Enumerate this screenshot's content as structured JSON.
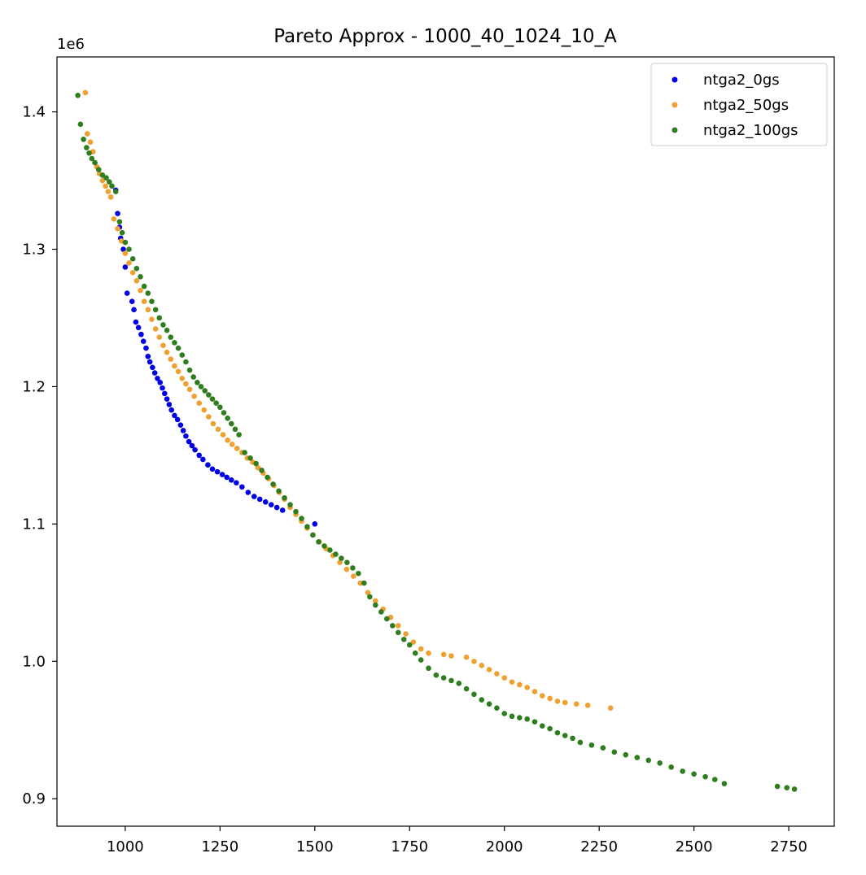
{
  "chart_data": {
    "type": "scatter",
    "title": "Pareto Approx - 1000_40_1024_10_A",
    "xlabel": "",
    "ylabel": "",
    "y_offset_label": "1e6",
    "xlim": [
      820,
      2870
    ],
    "ylim": [
      0.88,
      1.44
    ],
    "x_ticks": [
      1000,
      1250,
      1500,
      1750,
      2000,
      2250,
      2500,
      2750
    ],
    "x_tick_labels": [
      "1000",
      "1250",
      "1500",
      "1750",
      "2000",
      "2250",
      "2500",
      "2750"
    ],
    "y_ticks": [
      0.9,
      1.0,
      1.1,
      1.2,
      1.3,
      1.4
    ],
    "y_tick_labels": [
      "0.9",
      "1.0",
      "1.1",
      "1.2",
      "1.3",
      "1.4"
    ],
    "grid": false,
    "legend_position": "top-right",
    "series": [
      {
        "name": "ntga2_0gs",
        "color": "#0000e6",
        "points": [
          [
            975,
            1.343
          ],
          [
            980,
            1.326
          ],
          [
            985,
            1.316
          ],
          [
            988,
            1.308
          ],
          [
            995,
            1.3
          ],
          [
            1000,
            1.287
          ],
          [
            1005,
            1.268
          ],
          [
            1018,
            1.262
          ],
          [
            1023,
            1.256
          ],
          [
            1028,
            1.247
          ],
          [
            1035,
            1.243
          ],
          [
            1042,
            1.238
          ],
          [
            1048,
            1.233
          ],
          [
            1055,
            1.228
          ],
          [
            1060,
            1.222
          ],
          [
            1065,
            1.218
          ],
          [
            1072,
            1.214
          ],
          [
            1078,
            1.21
          ],
          [
            1085,
            1.206
          ],
          [
            1092,
            1.203
          ],
          [
            1098,
            1.199
          ],
          [
            1104,
            1.195
          ],
          [
            1110,
            1.191
          ],
          [
            1116,
            1.187
          ],
          [
            1122,
            1.183
          ],
          [
            1130,
            1.179
          ],
          [
            1138,
            1.176
          ],
          [
            1146,
            1.172
          ],
          [
            1153,
            1.168
          ],
          [
            1160,
            1.164
          ],
          [
            1168,
            1.16
          ],
          [
            1176,
            1.157
          ],
          [
            1184,
            1.154
          ],
          [
            1195,
            1.15
          ],
          [
            1205,
            1.147
          ],
          [
            1218,
            1.143
          ],
          [
            1230,
            1.14
          ],
          [
            1243,
            1.138
          ],
          [
            1256,
            1.136
          ],
          [
            1268,
            1.134
          ],
          [
            1280,
            1.132
          ],
          [
            1293,
            1.13
          ],
          [
            1308,
            1.127
          ],
          [
            1324,
            1.123
          ],
          [
            1340,
            1.12
          ],
          [
            1355,
            1.118
          ],
          [
            1370,
            1.116
          ],
          [
            1385,
            1.114
          ],
          [
            1400,
            1.112
          ],
          [
            1415,
            1.11
          ],
          [
            1500,
            1.1
          ]
        ]
      },
      {
        "name": "ntga2_50gs",
        "color": "#f0a030",
        "points": [
          [
            895,
            1.414
          ],
          [
            900,
            1.384
          ],
          [
            908,
            1.378
          ],
          [
            915,
            1.371
          ],
          [
            925,
            1.36
          ],
          [
            932,
            1.355
          ],
          [
            940,
            1.35
          ],
          [
            948,
            1.346
          ],
          [
            955,
            1.342
          ],
          [
            962,
            1.338
          ],
          [
            970,
            1.322
          ],
          [
            980,
            1.315
          ],
          [
            990,
            1.306
          ],
          [
            1000,
            1.297
          ],
          [
            1010,
            1.29
          ],
          [
            1020,
            1.283
          ],
          [
            1030,
            1.277
          ],
          [
            1040,
            1.27
          ],
          [
            1050,
            1.262
          ],
          [
            1060,
            1.256
          ],
          [
            1070,
            1.249
          ],
          [
            1080,
            1.242
          ],
          [
            1090,
            1.236
          ],
          [
            1100,
            1.23
          ],
          [
            1110,
            1.225
          ],
          [
            1120,
            1.22
          ],
          [
            1130,
            1.215
          ],
          [
            1140,
            1.211
          ],
          [
            1150,
            1.206
          ],
          [
            1160,
            1.202
          ],
          [
            1170,
            1.198
          ],
          [
            1182,
            1.193
          ],
          [
            1195,
            1.188
          ],
          [
            1208,
            1.183
          ],
          [
            1220,
            1.178
          ],
          [
            1232,
            1.173
          ],
          [
            1245,
            1.169
          ],
          [
            1258,
            1.165
          ],
          [
            1270,
            1.161
          ],
          [
            1282,
            1.158
          ],
          [
            1295,
            1.155
          ],
          [
            1308,
            1.152
          ],
          [
            1322,
            1.148
          ],
          [
            1336,
            1.145
          ],
          [
            1350,
            1.141
          ],
          [
            1364,
            1.137
          ],
          [
            1378,
            1.133
          ],
          [
            1392,
            1.128
          ],
          [
            1406,
            1.123
          ],
          [
            1420,
            1.118
          ],
          [
            1435,
            1.112
          ],
          [
            1450,
            1.107
          ],
          [
            1465,
            1.102
          ],
          [
            1480,
            1.097
          ],
          [
            1495,
            1.092
          ],
          [
            1512,
            1.087
          ],
          [
            1530,
            1.082
          ],
          [
            1548,
            1.077
          ],
          [
            1566,
            1.072
          ],
          [
            1584,
            1.067
          ],
          [
            1602,
            1.062
          ],
          [
            1620,
            1.057
          ],
          [
            1640,
            1.05
          ],
          [
            1660,
            1.044
          ],
          [
            1680,
            1.038
          ],
          [
            1700,
            1.032
          ],
          [
            1720,
            1.026
          ],
          [
            1740,
            1.02
          ],
          [
            1760,
            1.014
          ],
          [
            1780,
            1.009
          ],
          [
            1800,
            1.006
          ],
          [
            1840,
            1.005
          ],
          [
            1860,
            1.004
          ],
          [
            1900,
            1.003
          ],
          [
            1920,
            1.0
          ],
          [
            1940,
            0.997
          ],
          [
            1960,
            0.994
          ],
          [
            1980,
            0.991
          ],
          [
            2000,
            0.988
          ],
          [
            2020,
            0.985
          ],
          [
            2040,
            0.983
          ],
          [
            2060,
            0.981
          ],
          [
            2080,
            0.978
          ],
          [
            2100,
            0.975
          ],
          [
            2120,
            0.973
          ],
          [
            2140,
            0.971
          ],
          [
            2160,
            0.97
          ],
          [
            2190,
            0.969
          ],
          [
            2220,
            0.968
          ],
          [
            2280,
            0.966
          ]
        ]
      },
      {
        "name": "ntga2_100gs",
        "color": "#2e7d1e",
        "points": [
          [
            875,
            1.412
          ],
          [
            882,
            1.391
          ],
          [
            890,
            1.38
          ],
          [
            898,
            1.374
          ],
          [
            905,
            1.37
          ],
          [
            912,
            1.366
          ],
          [
            920,
            1.363
          ],
          [
            930,
            1.358
          ],
          [
            940,
            1.354
          ],
          [
            950,
            1.352
          ],
          [
            958,
            1.349
          ],
          [
            965,
            1.346
          ],
          [
            975,
            1.342
          ],
          [
            985,
            1.32
          ],
          [
            992,
            1.312
          ],
          [
            1000,
            1.305
          ],
          [
            1010,
            1.3
          ],
          [
            1020,
            1.293
          ],
          [
            1030,
            1.286
          ],
          [
            1040,
            1.28
          ],
          [
            1050,
            1.273
          ],
          [
            1060,
            1.268
          ],
          [
            1070,
            1.262
          ],
          [
            1080,
            1.256
          ],
          [
            1090,
            1.25
          ],
          [
            1100,
            1.245
          ],
          [
            1110,
            1.241
          ],
          [
            1120,
            1.236
          ],
          [
            1130,
            1.232
          ],
          [
            1140,
            1.228
          ],
          [
            1150,
            1.223
          ],
          [
            1160,
            1.218
          ],
          [
            1170,
            1.212
          ],
          [
            1180,
            1.207
          ],
          [
            1190,
            1.203
          ],
          [
            1200,
            1.2
          ],
          [
            1210,
            1.197
          ],
          [
            1220,
            1.194
          ],
          [
            1230,
            1.191
          ],
          [
            1240,
            1.188
          ],
          [
            1250,
            1.185
          ],
          [
            1260,
            1.181
          ],
          [
            1270,
            1.177
          ],
          [
            1280,
            1.173
          ],
          [
            1290,
            1.169
          ],
          [
            1300,
            1.165
          ],
          [
            1315,
            1.152
          ],
          [
            1330,
            1.148
          ],
          [
            1345,
            1.144
          ],
          [
            1360,
            1.139
          ],
          [
            1375,
            1.134
          ],
          [
            1390,
            1.129
          ],
          [
            1405,
            1.124
          ],
          [
            1420,
            1.119
          ],
          [
            1435,
            1.114
          ],
          [
            1450,
            1.109
          ],
          [
            1465,
            1.104
          ],
          [
            1480,
            1.098
          ],
          [
            1495,
            1.092
          ],
          [
            1510,
            1.087
          ],
          [
            1525,
            1.084
          ],
          [
            1540,
            1.081
          ],
          [
            1555,
            1.078
          ],
          [
            1570,
            1.075
          ],
          [
            1585,
            1.072
          ],
          [
            1600,
            1.068
          ],
          [
            1615,
            1.064
          ],
          [
            1630,
            1.057
          ],
          [
            1645,
            1.047
          ],
          [
            1660,
            1.041
          ],
          [
            1675,
            1.036
          ],
          [
            1690,
            1.031
          ],
          [
            1705,
            1.026
          ],
          [
            1720,
            1.021
          ],
          [
            1735,
            1.016
          ],
          [
            1750,
            1.012
          ],
          [
            1765,
            1.006
          ],
          [
            1780,
            1.001
          ],
          [
            1800,
            0.995
          ],
          [
            1820,
            0.99
          ],
          [
            1840,
            0.988
          ],
          [
            1860,
            0.986
          ],
          [
            1880,
            0.984
          ],
          [
            1900,
            0.98
          ],
          [
            1920,
            0.976
          ],
          [
            1940,
            0.972
          ],
          [
            1960,
            0.969
          ],
          [
            1980,
            0.966
          ],
          [
            2000,
            0.962
          ],
          [
            2020,
            0.96
          ],
          [
            2040,
            0.959
          ],
          [
            2060,
            0.958
          ],
          [
            2080,
            0.956
          ],
          [
            2100,
            0.953
          ],
          [
            2120,
            0.951
          ],
          [
            2140,
            0.948
          ],
          [
            2160,
            0.946
          ],
          [
            2180,
            0.944
          ],
          [
            2200,
            0.941
          ],
          [
            2230,
            0.939
          ],
          [
            2260,
            0.937
          ],
          [
            2290,
            0.934
          ],
          [
            2320,
            0.932
          ],
          [
            2350,
            0.93
          ],
          [
            2380,
            0.928
          ],
          [
            2410,
            0.926
          ],
          [
            2440,
            0.923
          ],
          [
            2470,
            0.92
          ],
          [
            2500,
            0.918
          ],
          [
            2530,
            0.916
          ],
          [
            2555,
            0.914
          ],
          [
            2580,
            0.911
          ],
          [
            2720,
            0.909
          ],
          [
            2745,
            0.908
          ],
          [
            2765,
            0.907
          ]
        ]
      }
    ]
  }
}
